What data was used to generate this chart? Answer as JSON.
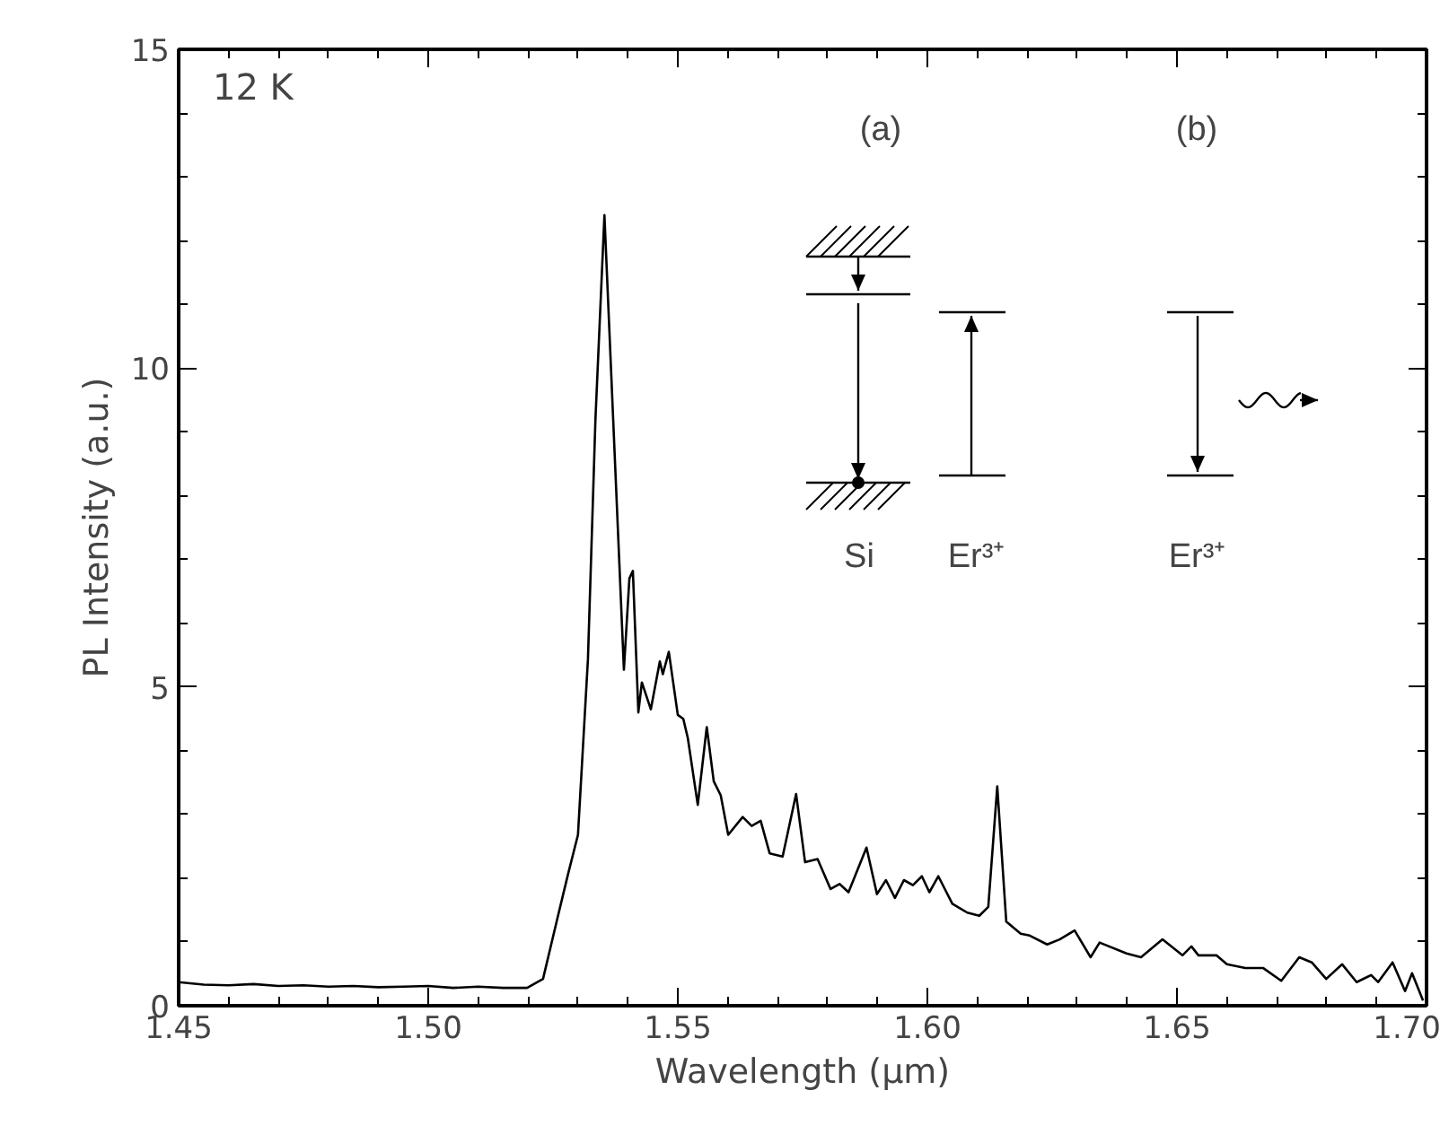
{
  "chart_data": {
    "type": "line",
    "xlabel": "Wavelength (μm)",
    "ylabel": "PL Intensity (a.u.)",
    "xlim": [
      1.45,
      1.7
    ],
    "ylim": [
      0,
      15
    ],
    "xticks": [
      1.45,
      {
        "value": 1.5,
        "label": "1.50"
      },
      1.55,
      {
        "value": 1.6,
        "label": "1.60"
      },
      1.65,
      {
        "value": 1.7,
        "label": "1.70"
      }
    ],
    "yticks": [
      0,
      5,
      10,
      15
    ],
    "grid": false,
    "marker": "none",
    "line_style": "solid",
    "annotations": [
      "12 K",
      "(a)",
      "(b)",
      "Si",
      "Er³⁺",
      "Er³⁺"
    ],
    "series": [
      {
        "color": "#000000",
        "x": [
          1.45,
          1.455,
          1.46,
          1.465,
          1.47,
          1.475,
          1.48,
          1.485,
          1.49,
          1.495,
          1.5,
          1.505,
          1.51,
          1.515,
          1.5198,
          1.523,
          1.526,
          1.528,
          1.53,
          1.532,
          1.5335,
          1.5353,
          1.5392,
          1.5403,
          1.541,
          1.5421,
          1.5428,
          1.5446,
          1.5464,
          1.547,
          1.5482,
          1.55,
          1.5511,
          1.552,
          1.554,
          1.5558,
          1.5572,
          1.5586,
          1.5601,
          1.563,
          1.5648,
          1.5666,
          1.5684,
          1.571,
          1.5737,
          1.5755,
          1.578,
          1.5806,
          1.5824,
          1.5842,
          1.5878,
          1.5899,
          1.5917,
          1.5935,
          1.5953,
          1.5971,
          1.5989,
          1.6004,
          1.6022,
          1.605,
          1.608,
          1.6104,
          1.6122,
          1.614,
          1.6158,
          1.6187,
          1.6205,
          1.624,
          1.6265,
          1.6295,
          1.6327,
          1.6345,
          1.6399,
          1.6428,
          1.6471,
          1.6511,
          1.6529,
          1.6543,
          1.6579,
          1.66,
          1.6637,
          1.6673,
          1.6709,
          1.6745,
          1.677,
          1.6799,
          1.6831,
          1.686,
          1.6889,
          1.6903,
          1.6932,
          1.6957,
          1.6971,
          1.6993
        ],
        "values": [
          0.37,
          0.33,
          0.32,
          0.34,
          0.31,
          0.32,
          0.3,
          0.31,
          0.29,
          0.3,
          0.31,
          0.28,
          0.3,
          0.28,
          0.28,
          0.42,
          1.41,
          2.06,
          2.68,
          5.44,
          9.2,
          12.4,
          5.27,
          6.7,
          6.82,
          4.6,
          5.07,
          4.65,
          5.4,
          5.2,
          5.55,
          4.56,
          4.5,
          4.2,
          3.15,
          4.37,
          3.52,
          3.3,
          2.68,
          2.96,
          2.82,
          2.9,
          2.39,
          2.34,
          3.32,
          2.25,
          2.3,
          1.83,
          1.91,
          1.78,
          2.48,
          1.75,
          1.97,
          1.69,
          1.97,
          1.89,
          2.03,
          1.78,
          2.03,
          1.6,
          1.46,
          1.41,
          1.55,
          3.44,
          1.32,
          1.13,
          1.1,
          0.96,
          1.04,
          1.18,
          0.76,
          0.99,
          0.82,
          0.76,
          1.04,
          0.79,
          0.93,
          0.79,
          0.79,
          0.65,
          0.59,
          0.59,
          0.39,
          0.76,
          0.68,
          0.42,
          0.65,
          0.37,
          0.48,
          0.37,
          0.68,
          0.23,
          0.51,
          0.08
        ]
      }
    ]
  }
}
